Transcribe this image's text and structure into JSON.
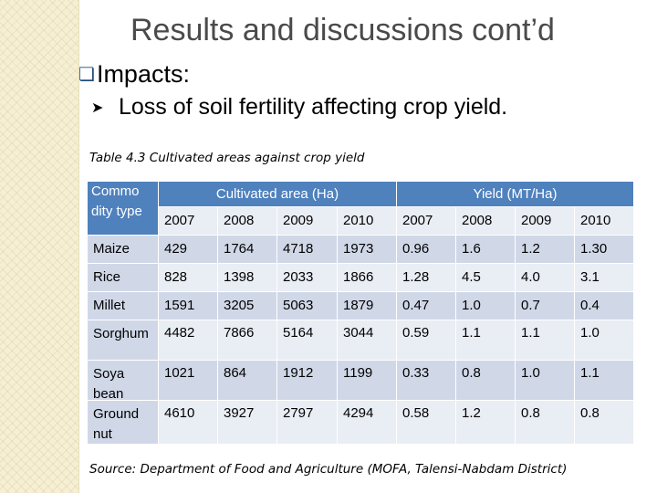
{
  "title": "Results and discussions cont’d",
  "bullet1": "Impacts:",
  "bullet2": "Loss of soil fertility affecting crop yield.",
  "caption": "Table 4.3 Cultivated areas against crop yield",
  "source": "Source: Department of Food and Agriculture (MOFA, Talensi-Nabdam District)",
  "table": {
    "header_commodity": "Commo dity type",
    "header_area": "Cultivated area (Ha)",
    "header_yield": "Yield (MT/Ha)",
    "years": [
      "2007",
      "2008",
      "2009",
      "2010",
      "2007",
      "2008",
      "2009",
      "2010"
    ],
    "rows": [
      {
        "name": "Maize",
        "values": [
          "429",
          "1764",
          "4718",
          "1973",
          "0.96",
          "1.6",
          "1.2",
          "1.30"
        ]
      },
      {
        "name": "Rice",
        "values": [
          "828",
          "1398",
          "2033",
          "1866",
          "1.28",
          "4.5",
          "4.0",
          "3.1"
        ]
      },
      {
        "name": "Millet",
        "values": [
          "1591",
          "3205",
          "5063",
          "1879",
          "0.47",
          "1.0",
          "0.7",
          "0.4"
        ]
      },
      {
        "name": "Sorghum",
        "values": [
          "4482",
          "7866",
          "5164",
          "3044",
          "0.59",
          "1.1",
          "1.1",
          "1.0"
        ]
      },
      {
        "name": "Soya bean",
        "values": [
          "1021",
          "864",
          "1912",
          "1199",
          "0.33",
          "0.8",
          "1.0",
          "1.1"
        ]
      },
      {
        "name": "Ground nut",
        "values": [
          "4610",
          "3927",
          "2797",
          "4294",
          "0.58",
          "1.2",
          "0.8",
          "0.8"
        ]
      }
    ]
  }
}
